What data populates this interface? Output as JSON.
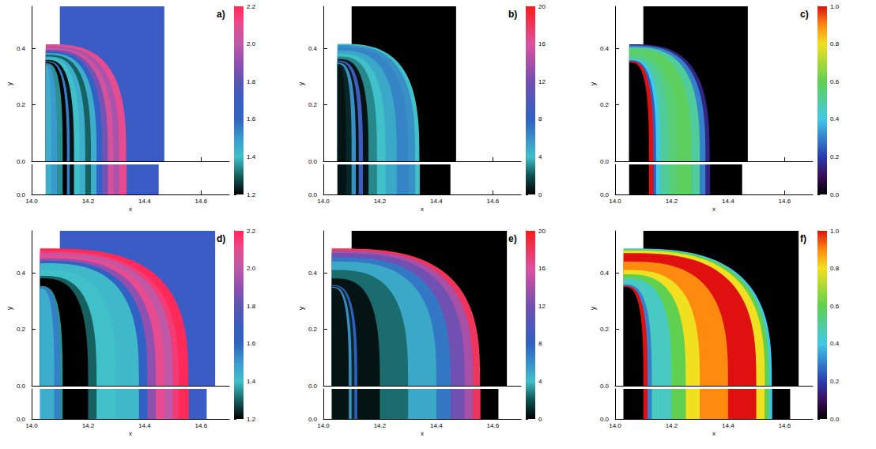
{
  "chart_data": [
    {
      "type": "heatmap",
      "label": "a)",
      "xlabel": "x",
      "ylabel": "y",
      "xlim": [
        14.0,
        14.7
      ],
      "xticks": [
        {
          "value": 14.0,
          "label": "14.0"
        },
        {
          "value": 14.2,
          "label": "14.2"
        },
        {
          "value": 14.4,
          "label": "14.4"
        },
        {
          "value": 14.6,
          "label": "14.6"
        }
      ],
      "ylim": [
        0,
        0.55
      ],
      "yticks": [
        {
          "value": 0,
          "label": "0.0"
        },
        0.2,
        0.4
      ],
      "strip": {
        "ylim": [
          0,
          0.1
        ],
        "yticks": [
          {
            "value": 0,
            "label": "0.0"
          }
        ]
      },
      "profile": {
        "edges": [
          14.05,
          14.07,
          14.09,
          14.11,
          14.125,
          14.135,
          14.15,
          14.17,
          14.19,
          14.21,
          14.23,
          14.25,
          14.27,
          14.29,
          14.31,
          14.335
        ],
        "values": [
          1.45,
          1.5,
          1.35,
          1.2,
          1.55,
          1.22,
          1.4,
          1.45,
          1.3,
          1.45,
          1.6,
          1.85,
          2.05,
          1.95,
          2.1
        ]
      },
      "ambient": {
        "value": 1.7,
        "main_xlim": [
          14.1,
          14.47
        ],
        "strip_xlim": [
          14.05,
          14.45
        ]
      },
      "colorbar": {
        "range": [
          1.2,
          2.2
        ],
        "ticks": [
          1.2,
          1.4,
          1.6,
          1.8,
          {
            "value": 2.0,
            "label": "2.0"
          },
          2.2
        ]
      }
    },
    {
      "type": "heatmap",
      "label": "b)",
      "xlabel": "x",
      "ylabel": "y",
      "xlim": [
        14.0,
        14.7
      ],
      "xticks": [
        {
          "value": 14.0,
          "label": "14.0"
        },
        {
          "value": 14.2,
          "label": "14.2"
        },
        {
          "value": 14.4,
          "label": "14.4"
        },
        {
          "value": 14.6,
          "label": "14.6"
        }
      ],
      "ylim": [
        0,
        0.55
      ],
      "yticks": [
        {
          "value": 0,
          "label": "0.0"
        },
        0.2,
        0.4
      ],
      "strip": {
        "ylim": [
          0,
          0.1
        ],
        "yticks": [
          {
            "value": 0,
            "label": "0.0"
          }
        ]
      },
      "profile": {
        "edges": [
          14.05,
          14.08,
          14.1,
          14.115,
          14.125,
          14.14,
          14.16,
          14.19,
          14.22,
          14.26,
          14.3,
          14.325,
          14.34
        ],
        "values": [
          0.5,
          1,
          6,
          0.5,
          9,
          0.5,
          3,
          4,
          5,
          6.5,
          6,
          4
        ]
      },
      "ambient": {
        "value": 0,
        "main_xlim": [
          14.1,
          14.47
        ],
        "strip_xlim": [
          14.05,
          14.45
        ]
      },
      "colorbar": {
        "range": [
          0,
          20
        ],
        "ticks": [
          0,
          4,
          8,
          12,
          16,
          20
        ]
      }
    },
    {
      "type": "heatmap",
      "label": "c)",
      "xlabel": "x",
      "ylabel": "y",
      "xlim": [
        14.0,
        14.7
      ],
      "xticks": [
        {
          "value": 14.0,
          "label": "14.0"
        },
        {
          "value": 14.2,
          "label": "14.2"
        },
        {
          "value": 14.4,
          "label": "14.4"
        },
        {
          "value": 14.6,
          "label": "14.6"
        }
      ],
      "ylim": [
        0,
        0.55
      ],
      "yticks": [
        {
          "value": 0,
          "label": "0.0"
        },
        0.2,
        0.4
      ],
      "strip": {
        "ylim": [
          0,
          0.1
        ],
        "yticks": [
          {
            "value": 0,
            "label": "0.0"
          }
        ]
      },
      "profile": {
        "edges": [
          14.05,
          14.12,
          14.135,
          14.145,
          14.16,
          14.19,
          14.22,
          14.27,
          14.3,
          14.32,
          14.335
        ],
        "values": [
          0,
          1.0,
          0.25,
          0.4,
          0.5,
          0.55,
          0.58,
          0.5,
          0.3,
          0.15
        ]
      },
      "ambient": {
        "value": 0,
        "main_xlim": [
          14.1,
          14.47
        ],
        "strip_xlim": [
          14.05,
          14.45
        ]
      },
      "colorbar": {
        "range": [
          0,
          1
        ],
        "ticks": [
          {
            "value": 0,
            "label": "0.0"
          },
          0.2,
          0.4,
          0.6,
          0.8,
          {
            "value": 1,
            "label": "1.0"
          }
        ]
      }
    },
    {
      "type": "heatmap",
      "label": "d)",
      "xlabel": "x",
      "ylabel": "y",
      "xlim": [
        14.0,
        14.7
      ],
      "xticks": [
        {
          "value": 14.0,
          "label": "14.0"
        },
        {
          "value": 14.2,
          "label": "14.2"
        },
        {
          "value": 14.4,
          "label": "14.4"
        },
        {
          "value": 14.6,
          "label": "14.6"
        }
      ],
      "ylim": [
        0,
        0.55
      ],
      "yticks": [
        {
          "value": 0,
          "label": "0.0"
        },
        0.2,
        0.4
      ],
      "strip": {
        "ylim": [
          0,
          0.1
        ],
        "yticks": [
          {
            "value": 0,
            "label": "0.0"
          }
        ]
      },
      "profile": {
        "edges": [
          14.03,
          14.08,
          14.1,
          14.11,
          14.2,
          14.23,
          14.3,
          14.38,
          14.41,
          14.44,
          14.47,
          14.5,
          14.52,
          14.555
        ],
        "values": [
          1.45,
          1.55,
          1.35,
          1.2,
          1.3,
          1.4,
          1.42,
          1.6,
          1.9,
          2.1,
          2.0,
          2.15,
          2.2
        ]
      },
      "ambient": {
        "value": 1.7,
        "main_xlim": [
          14.1,
          14.65
        ],
        "strip_xlim": [
          14.03,
          14.62
        ]
      },
      "colorbar": {
        "range": [
          1.2,
          2.2
        ],
        "ticks": [
          1.2,
          1.4,
          1.6,
          1.8,
          {
            "value": 2.0,
            "label": "2.0"
          },
          2.2
        ]
      }
    },
    {
      "type": "heatmap",
      "label": "e)",
      "xlabel": "x",
      "ylabel": "y",
      "xlim": [
        14.0,
        14.7
      ],
      "xticks": [
        {
          "value": 14.0,
          "label": "14.0"
        },
        {
          "value": 14.2,
          "label": "14.2"
        },
        {
          "value": 14.4,
          "label": "14.4"
        },
        {
          "value": 14.6,
          "label": "14.6"
        }
      ],
      "ylim": [
        0,
        0.55
      ],
      "yticks": [
        {
          "value": 0,
          "label": "0.0"
        },
        0.2,
        0.4
      ],
      "strip": {
        "ylim": [
          0,
          0.1
        ],
        "yticks": [
          {
            "value": 0,
            "label": "0.0"
          }
        ]
      },
      "profile": {
        "edges": [
          14.03,
          14.09,
          14.1,
          14.11,
          14.12,
          14.2,
          14.3,
          14.4,
          14.45,
          14.5,
          14.53,
          14.555
        ],
        "values": [
          0.5,
          6,
          1,
          8,
          0.5,
          2.5,
          5,
          7,
          12,
          14,
          18
        ]
      },
      "ambient": {
        "value": 0,
        "main_xlim": [
          14.1,
          14.65
        ],
        "strip_xlim": [
          14.03,
          14.62
        ]
      },
      "colorbar": {
        "range": [
          0,
          20
        ],
        "ticks": [
          0,
          4,
          8,
          12,
          16,
          20
        ]
      }
    },
    {
      "type": "heatmap",
      "label": "f)",
      "xlabel": "x",
      "ylabel": "y",
      "xlim": [
        14.0,
        14.7
      ],
      "xticks": [
        {
          "value": 14.0,
          "label": "14.0"
        },
        {
          "value": 14.2,
          "label": "14.2"
        },
        {
          "value": 14.4,
          "label": "14.4"
        },
        {
          "value": 14.6,
          "label": "14.6"
        }
      ],
      "ylim": [
        0,
        0.55
      ],
      "yticks": [
        {
          "value": 0,
          "label": "0.0"
        },
        0.2,
        0.4
      ],
      "strip": {
        "ylim": [
          0,
          0.1
        ],
        "yticks": [
          {
            "value": 0,
            "label": "0.0"
          }
        ]
      },
      "profile": {
        "edges": [
          14.03,
          14.1,
          14.115,
          14.13,
          14.2,
          14.25,
          14.3,
          14.4,
          14.5,
          14.53,
          14.545,
          14.555
        ],
        "values": [
          0,
          1.0,
          0.3,
          0.45,
          0.6,
          0.8,
          0.9,
          1.0,
          0.8,
          0.6,
          0.4
        ]
      },
      "ambient": {
        "value": 0,
        "main_xlim": [
          14.1,
          14.65
        ],
        "strip_xlim": [
          14.03,
          14.62
        ]
      },
      "colorbar": {
        "range": [
          0,
          1
        ],
        "ticks": [
          {
            "value": 0,
            "label": "0.0"
          },
          0.2,
          0.4,
          0.6,
          0.8,
          {
            "value": 1,
            "label": "1.0"
          }
        ]
      }
    }
  ]
}
